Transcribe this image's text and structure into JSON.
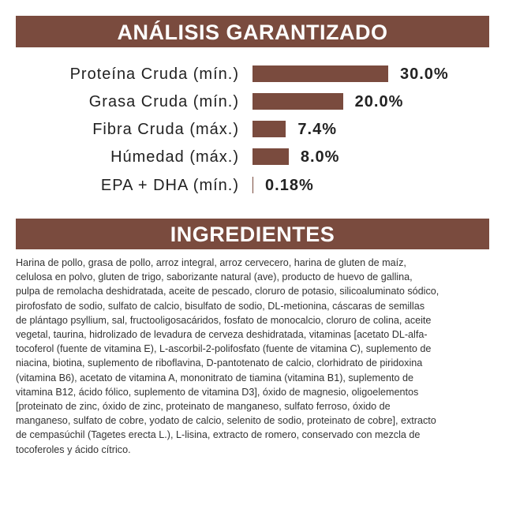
{
  "chart_data": {
    "type": "bar",
    "orientation": "horizontal",
    "title": "ANÁLISIS GARANTIZADO",
    "categories": [
      "Proteína Cruda (mín.)",
      "Grasa Cruda (mín.)",
      "Fibra Cruda (máx.)",
      "Húmedad (máx.)",
      "EPA + DHA (mín.)"
    ],
    "values": [
      30.0,
      20.0,
      7.4,
      8.0,
      0.18
    ],
    "value_labels": [
      "30.0%",
      "20.0%",
      "7.4%",
      "8.0%",
      "0.18%"
    ],
    "color": "#7a4b3e"
  },
  "ingredients": {
    "title": "INGREDIENTES",
    "lines": [
      "Harina de pollo, grasa de pollo, arroz integral, arroz cervecero, harina de gluten de maíz,",
      "celulosa en polvo, gluten de trigo, saborizante natural (ave), producto de huevo de gallina,",
      "pulpa de remolacha deshidratada, aceite de pescado, cloruro de potasio, silicoaluminato sódico,",
      "pirofosfato de sodio, sulfato de calcio, bisulfato de sodio, DL-metionina, cáscaras de semillas",
      "de plántago psyllium, sal, fructooligosacáridos, fosfato de monocalcio, cloruro de colina, aceite",
      "vegetal, taurina, hidrolizado de levadura de cerveza deshidratada, vitaminas [acetato DL-alfa-",
      "tocoferol (fuente de vitamina E), L-ascorbil-2-polifosfato (fuente de vitamina C), suplemento de",
      "niacina, biotina, suplemento de riboflavina, D-pantotenato de calcio, clorhidrato de piridoxina",
      "(vitamina B6), acetato de vitamina A, mononitrato de tiamina (vitamina B1), suplemento de",
      "vitamina B12, ácido fólico, suplemento de vitamina D3], óxido de magnesio, oligoelementos",
      "[proteinato de zinc, óxido de zinc, proteinato de manganeso, sulfato ferroso, óxido de",
      "manganeso, sulfato de cobre, yodato de calcio, selenito de sodio, proteinato de cobre], extracto",
      "de cempasúchil (Tagetes erecta L.), L-lisina, extracto de romero, conservado con mezcla de",
      "tocoferoles y ácido cítrico."
    ]
  }
}
